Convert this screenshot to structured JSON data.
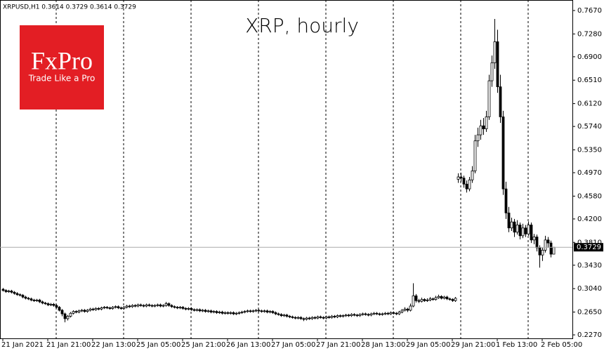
{
  "chart_data": {
    "type": "candlestick",
    "title": "XRP, hourly",
    "header": "XRPUSD,H1  0.3614 0.3729 0.3614 0.3729",
    "logo": {
      "brand": "FxPro",
      "tagline": "Trade Like a Pro",
      "color": "#e31e24"
    },
    "categories": [
      "21 Jan 2021",
      null,
      null,
      null,
      null,
      null,
      null,
      null,
      null,
      null,
      null,
      null,
      null,
      null,
      null,
      null,
      "21 Jan 21:00",
      null,
      null,
      null,
      null,
      null,
      null,
      null,
      null,
      null,
      null,
      null,
      null,
      null,
      null,
      null,
      "22 Jan 13:00",
      null,
      null,
      null,
      null,
      null,
      null,
      null,
      null,
      null,
      null,
      null,
      null,
      null,
      null,
      null,
      "25 Jan 05:00",
      null,
      null,
      null,
      null,
      null,
      null,
      null,
      null,
      null,
      null,
      null,
      null,
      null,
      null,
      null,
      "25 Jan 21:00",
      null,
      null,
      null,
      null,
      null,
      null,
      null,
      null,
      null,
      null,
      null,
      null,
      null,
      null,
      null,
      "26 Jan 13:00",
      null,
      null,
      null,
      null,
      null,
      null,
      null,
      null,
      null,
      null,
      null,
      null,
      null,
      null,
      null,
      "27 Jan 05:00",
      null,
      null,
      null,
      null,
      null,
      null,
      null,
      null,
      null,
      null,
      null,
      null,
      null,
      null,
      null,
      "27 Jan 21:00",
      null,
      null,
      null,
      null,
      null,
      null,
      null,
      null,
      null,
      null,
      null,
      null,
      null,
      null,
      null,
      "28 Jan 13:00",
      null,
      null,
      null,
      null,
      null,
      null,
      null,
      null,
      null,
      null,
      null,
      null,
      null,
      null,
      null,
      "29 Jan 05:00",
      null,
      null,
      null,
      null,
      null,
      null,
      null,
      null,
      null,
      null,
      null,
      null,
      null,
      null,
      null,
      "29 Jan 21:00",
      null,
      null,
      null,
      null,
      null,
      null,
      null,
      null,
      null,
      null,
      null,
      null,
      null,
      null,
      null,
      "1 Feb 13:00",
      null,
      null,
      null,
      null,
      null,
      null,
      null,
      null,
      null,
      null,
      null,
      null,
      null,
      null,
      null,
      "2 Feb 05:00",
      null,
      null,
      null,
      null
    ],
    "ohlc": [
      [
        0.303,
        0.305,
        0.299,
        0.301
      ],
      [
        0.301,
        0.303,
        0.297,
        0.299
      ],
      [
        0.299,
        0.302,
        0.297,
        0.3
      ],
      [
        0.3,
        0.302,
        0.296,
        0.298
      ],
      [
        0.298,
        0.3,
        0.294,
        0.296
      ],
      [
        0.296,
        0.298,
        0.292,
        0.294
      ],
      [
        0.294,
        0.296,
        0.291,
        0.293
      ],
      [
        0.293,
        0.295,
        0.288,
        0.29
      ],
      [
        0.29,
        0.292,
        0.286,
        0.288
      ],
      [
        0.288,
        0.29,
        0.285,
        0.287
      ],
      [
        0.287,
        0.289,
        0.283,
        0.285
      ],
      [
        0.285,
        0.287,
        0.282,
        0.284
      ],
      [
        0.284,
        0.287,
        0.282,
        0.285
      ],
      [
        0.285,
        0.287,
        0.28,
        0.282
      ],
      [
        0.282,
        0.284,
        0.278,
        0.28
      ],
      [
        0.28,
        0.282,
        0.277,
        0.279
      ],
      [
        0.279,
        0.281,
        0.275,
        0.277
      ],
      [
        0.277,
        0.28,
        0.275,
        0.278
      ],
      [
        0.278,
        0.28,
        0.274,
        0.276
      ],
      [
        0.276,
        0.278,
        0.271,
        0.273
      ],
      [
        0.273,
        0.275,
        0.266,
        0.268
      ],
      [
        0.268,
        0.27,
        0.258,
        0.262
      ],
      [
        0.262,
        0.264,
        0.248,
        0.254
      ],
      [
        0.254,
        0.26,
        0.251,
        0.258
      ],
      [
        0.258,
        0.265,
        0.256,
        0.263
      ],
      [
        0.263,
        0.268,
        0.261,
        0.266
      ],
      [
        0.266,
        0.268,
        0.263,
        0.265
      ],
      [
        0.265,
        0.269,
        0.263,
        0.267
      ],
      [
        0.267,
        0.27,
        0.265,
        0.268
      ],
      [
        0.268,
        0.27,
        0.264,
        0.266
      ],
      [
        0.266,
        0.27,
        0.264,
        0.268
      ],
      [
        0.268,
        0.272,
        0.266,
        0.27
      ],
      [
        0.27,
        0.272,
        0.267,
        0.269
      ],
      [
        0.269,
        0.273,
        0.267,
        0.271
      ],
      [
        0.271,
        0.273,
        0.268,
        0.27
      ],
      [
        0.27,
        0.274,
        0.268,
        0.272
      ],
      [
        0.272,
        0.275,
        0.27,
        0.273
      ],
      [
        0.273,
        0.275,
        0.27,
        0.272
      ],
      [
        0.272,
        0.274,
        0.269,
        0.271
      ],
      [
        0.271,
        0.275,
        0.269,
        0.273
      ],
      [
        0.273,
        0.276,
        0.271,
        0.274
      ],
      [
        0.274,
        0.276,
        0.27,
        0.272
      ],
      [
        0.272,
        0.274,
        0.269,
        0.271
      ],
      [
        0.271,
        0.275,
        0.269,
        0.273
      ],
      [
        0.273,
        0.277,
        0.271,
        0.275
      ],
      [
        0.275,
        0.277,
        0.272,
        0.274
      ],
      [
        0.274,
        0.278,
        0.272,
        0.276
      ],
      [
        0.276,
        0.278,
        0.273,
        0.275
      ],
      [
        0.275,
        0.279,
        0.273,
        0.277
      ],
      [
        0.277,
        0.279,
        0.274,
        0.276
      ],
      [
        0.276,
        0.278,
        0.273,
        0.275
      ],
      [
        0.275,
        0.279,
        0.273,
        0.277
      ],
      [
        0.277,
        0.279,
        0.274,
        0.276
      ],
      [
        0.276,
        0.278,
        0.273,
        0.275
      ],
      [
        0.275,
        0.278,
        0.273,
        0.276
      ],
      [
        0.276,
        0.279,
        0.274,
        0.277
      ],
      [
        0.277,
        0.279,
        0.273,
        0.275
      ],
      [
        0.275,
        0.278,
        0.273,
        0.276
      ],
      [
        0.276,
        0.282,
        0.274,
        0.279
      ],
      [
        0.279,
        0.281,
        0.274,
        0.276
      ],
      [
        0.276,
        0.278,
        0.272,
        0.274
      ],
      [
        0.274,
        0.276,
        0.271,
        0.273
      ],
      [
        0.273,
        0.275,
        0.27,
        0.272
      ],
      [
        0.272,
        0.275,
        0.27,
        0.273
      ],
      [
        0.273,
        0.275,
        0.269,
        0.271
      ],
      [
        0.271,
        0.273,
        0.268,
        0.27
      ],
      [
        0.27,
        0.273,
        0.268,
        0.271
      ],
      [
        0.271,
        0.273,
        0.267,
        0.269
      ],
      [
        0.269,
        0.271,
        0.266,
        0.268
      ],
      [
        0.268,
        0.271,
        0.266,
        0.269
      ],
      [
        0.269,
        0.271,
        0.265,
        0.267
      ],
      [
        0.267,
        0.27,
        0.265,
        0.268
      ],
      [
        0.268,
        0.27,
        0.264,
        0.266
      ],
      [
        0.266,
        0.269,
        0.264,
        0.267
      ],
      [
        0.267,
        0.269,
        0.263,
        0.265
      ],
      [
        0.265,
        0.268,
        0.263,
        0.266
      ],
      [
        0.266,
        0.268,
        0.262,
        0.264
      ],
      [
        0.264,
        0.267,
        0.262,
        0.265
      ],
      [
        0.265,
        0.267,
        0.261,
        0.263
      ],
      [
        0.263,
        0.266,
        0.261,
        0.264
      ],
      [
        0.264,
        0.266,
        0.261,
        0.263
      ],
      [
        0.263,
        0.266,
        0.261,
        0.264
      ],
      [
        0.264,
        0.266,
        0.26,
        0.262
      ],
      [
        0.262,
        0.265,
        0.26,
        0.263
      ],
      [
        0.263,
        0.266,
        0.261,
        0.264
      ],
      [
        0.264,
        0.267,
        0.262,
        0.265
      ],
      [
        0.265,
        0.268,
        0.263,
        0.266
      ],
      [
        0.266,
        0.269,
        0.264,
        0.267
      ],
      [
        0.267,
        0.269,
        0.264,
        0.266
      ],
      [
        0.266,
        0.269,
        0.264,
        0.267
      ],
      [
        0.267,
        0.27,
        0.265,
        0.268
      ],
      [
        0.268,
        0.27,
        0.265,
        0.267
      ],
      [
        0.267,
        0.269,
        0.264,
        0.266
      ],
      [
        0.266,
        0.269,
        0.264,
        0.267
      ],
      [
        0.267,
        0.269,
        0.263,
        0.265
      ],
      [
        0.265,
        0.268,
        0.263,
        0.266
      ],
      [
        0.266,
        0.268,
        0.262,
        0.264
      ],
      [
        0.264,
        0.266,
        0.26,
        0.262
      ],
      [
        0.262,
        0.264,
        0.259,
        0.261
      ],
      [
        0.261,
        0.263,
        0.257,
        0.259
      ],
      [
        0.259,
        0.262,
        0.257,
        0.26
      ],
      [
        0.26,
        0.262,
        0.256,
        0.258
      ],
      [
        0.258,
        0.26,
        0.255,
        0.257
      ],
      [
        0.257,
        0.259,
        0.254,
        0.256
      ],
      [
        0.256,
        0.258,
        0.253,
        0.255
      ],
      [
        0.255,
        0.258,
        0.253,
        0.256
      ],
      [
        0.256,
        0.258,
        0.252,
        0.254
      ],
      [
        0.254,
        0.256,
        0.25,
        0.253
      ],
      [
        0.253,
        0.257,
        0.251,
        0.255
      ],
      [
        0.255,
        0.257,
        0.252,
        0.254
      ],
      [
        0.254,
        0.258,
        0.252,
        0.256
      ],
      [
        0.256,
        0.258,
        0.253,
        0.255
      ],
      [
        0.255,
        0.259,
        0.253,
        0.257
      ],
      [
        0.257,
        0.259,
        0.254,
        0.256
      ],
      [
        0.256,
        0.258,
        0.253,
        0.255
      ],
      [
        0.255,
        0.259,
        0.253,
        0.257
      ],
      [
        0.257,
        0.259,
        0.254,
        0.256
      ],
      [
        0.256,
        0.26,
        0.254,
        0.258
      ],
      [
        0.258,
        0.26,
        0.255,
        0.257
      ],
      [
        0.257,
        0.261,
        0.255,
        0.259
      ],
      [
        0.259,
        0.261,
        0.256,
        0.258
      ],
      [
        0.258,
        0.261,
        0.256,
        0.259
      ],
      [
        0.259,
        0.262,
        0.257,
        0.26
      ],
      [
        0.26,
        0.262,
        0.257,
        0.259
      ],
      [
        0.259,
        0.263,
        0.257,
        0.261
      ],
      [
        0.261,
        0.263,
        0.258,
        0.26
      ],
      [
        0.26,
        0.262,
        0.257,
        0.259
      ],
      [
        0.259,
        0.263,
        0.257,
        0.261
      ],
      [
        0.261,
        0.264,
        0.259,
        0.262
      ],
      [
        0.262,
        0.264,
        0.259,
        0.261
      ],
      [
        0.261,
        0.263,
        0.258,
        0.26
      ],
      [
        0.26,
        0.264,
        0.258,
        0.262
      ],
      [
        0.262,
        0.265,
        0.26,
        0.263
      ],
      [
        0.263,
        0.265,
        0.26,
        0.262
      ],
      [
        0.262,
        0.264,
        0.259,
        0.261
      ],
      [
        0.261,
        0.264,
        0.259,
        0.262
      ],
      [
        0.262,
        0.265,
        0.26,
        0.263
      ],
      [
        0.263,
        0.265,
        0.26,
        0.262
      ],
      [
        0.262,
        0.266,
        0.26,
        0.264
      ],
      [
        0.264,
        0.266,
        0.261,
        0.263
      ],
      [
        0.263,
        0.265,
        0.26,
        0.262
      ],
      [
        0.262,
        0.267,
        0.26,
        0.265
      ],
      [
        0.265,
        0.27,
        0.263,
        0.268
      ],
      [
        0.268,
        0.273,
        0.266,
        0.27
      ],
      [
        0.27,
        0.272,
        0.265,
        0.268
      ],
      [
        0.268,
        0.279,
        0.266,
        0.275
      ],
      [
        0.275,
        0.313,
        0.273,
        0.292
      ],
      [
        0.292,
        0.295,
        0.281,
        0.284
      ],
      [
        0.284,
        0.287,
        0.28,
        0.283
      ],
      [
        0.283,
        0.289,
        0.281,
        0.286
      ],
      [
        0.286,
        0.288,
        0.282,
        0.284
      ],
      [
        0.284,
        0.288,
        0.282,
        0.285
      ],
      [
        0.285,
        0.29,
        0.283,
        0.287
      ],
      [
        0.287,
        0.289,
        0.284,
        0.286
      ],
      [
        0.286,
        0.292,
        0.284,
        0.289
      ],
      [
        0.289,
        0.294,
        0.287,
        0.291
      ],
      [
        0.291,
        0.293,
        0.286,
        0.288
      ],
      [
        0.288,
        0.292,
        0.286,
        0.29
      ],
      [
        0.29,
        0.292,
        0.285,
        0.287
      ],
      [
        0.287,
        0.289,
        0.284,
        0.286
      ],
      [
        0.286,
        0.288,
        0.282,
        0.284
      ],
      [
        0.284,
        0.29,
        0.282,
        0.288
      ],
      [
        0.486,
        0.496,
        0.48,
        0.49
      ],
      [
        0.49,
        0.497,
        0.482,
        0.488
      ],
      [
        0.488,
        0.492,
        0.472,
        0.478
      ],
      [
        0.478,
        0.484,
        0.464,
        0.47
      ],
      [
        0.47,
        0.49,
        0.466,
        0.485
      ],
      [
        0.485,
        0.508,
        0.48,
        0.5
      ],
      [
        0.5,
        0.56,
        0.496,
        0.55
      ],
      [
        0.55,
        0.572,
        0.54,
        0.56
      ],
      [
        0.56,
        0.585,
        0.552,
        0.575
      ],
      [
        0.575,
        0.588,
        0.56,
        0.57
      ],
      [
        0.57,
        0.6,
        0.565,
        0.59
      ],
      [
        0.59,
        0.66,
        0.585,
        0.65
      ],
      [
        0.65,
        0.692,
        0.64,
        0.68
      ],
      [
        0.68,
        0.753,
        0.67,
        0.715
      ],
      [
        0.715,
        0.735,
        0.63,
        0.64
      ],
      [
        0.64,
        0.66,
        0.58,
        0.59
      ],
      [
        0.59,
        0.6,
        0.46,
        0.47
      ],
      [
        0.47,
        0.482,
        0.42,
        0.43
      ],
      [
        0.43,
        0.44,
        0.398,
        0.405
      ],
      [
        0.405,
        0.422,
        0.4,
        0.415
      ],
      [
        0.415,
        0.42,
        0.39,
        0.398
      ],
      [
        0.398,
        0.418,
        0.394,
        0.41
      ],
      [
        0.41,
        0.414,
        0.386,
        0.392
      ],
      [
        0.392,
        0.412,
        0.388,
        0.405
      ],
      [
        0.405,
        0.41,
        0.39,
        0.395
      ],
      [
        0.395,
        0.416,
        0.392,
        0.41
      ],
      [
        0.41,
        0.414,
        0.38,
        0.385
      ],
      [
        0.385,
        0.395,
        0.378,
        0.39
      ],
      [
        0.39,
        0.394,
        0.366,
        0.372
      ],
      [
        0.372,
        0.376,
        0.339,
        0.36
      ],
      [
        0.36,
        0.372,
        0.35,
        0.368
      ],
      [
        0.368,
        0.392,
        0.364,
        0.385
      ],
      [
        0.385,
        0.39,
        0.372,
        0.38
      ],
      [
        0.38,
        0.384,
        0.356,
        0.3614
      ],
      [
        0.3614,
        0.3729,
        0.3614,
        0.3729
      ]
    ],
    "last_price": 0.3729,
    "ylim": [
      0.2212,
      0.7845
    ],
    "yticks": [
      {
        "value": 0.227,
        "label": "0.2270"
      },
      {
        "value": 0.265,
        "label": "0.2650"
      },
      {
        "value": 0.304,
        "label": "0.3040"
      },
      {
        "value": 0.343,
        "label": "0.3430"
      },
      {
        "value": 0.381,
        "label": "0.3810"
      },
      {
        "value": 0.42,
        "label": "0.4200"
      },
      {
        "value": 0.458,
        "label": "0.4580"
      },
      {
        "value": 0.497,
        "label": "0.4970"
      },
      {
        "value": 0.535,
        "label": "0.5350"
      },
      {
        "value": 0.574,
        "label": "0.5740"
      },
      {
        "value": 0.612,
        "label": "0.6120"
      },
      {
        "value": 0.651,
        "label": "0.6510"
      },
      {
        "value": 0.69,
        "label": "0.6900"
      },
      {
        "value": 0.728,
        "label": "0.7280"
      },
      {
        "value": 0.767,
        "label": "0.7670"
      }
    ],
    "up_color": "#ffffff",
    "down_color": "#000000"
  }
}
